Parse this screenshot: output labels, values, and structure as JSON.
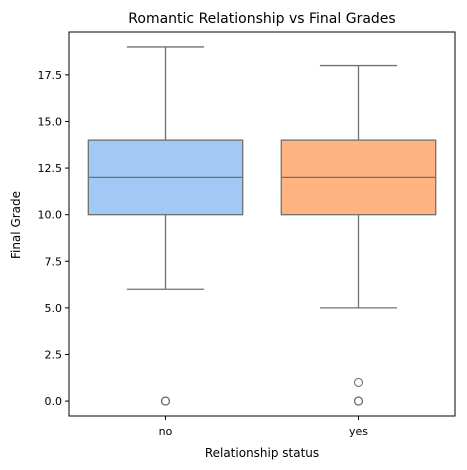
{
  "chart_data": {
    "type": "box",
    "title": "Romantic Relationship vs Final Grades",
    "xlabel": "Relationship status",
    "ylabel": "Final Grade",
    "ylim": [
      -0.8,
      19.8
    ],
    "yticks": [
      0.0,
      2.5,
      5.0,
      7.5,
      10.0,
      12.5,
      15.0,
      17.5
    ],
    "ytick_labels": [
      "0.0",
      "2.5",
      "5.0",
      "7.5",
      "10.0",
      "12.5",
      "15.0",
      "17.5"
    ],
    "categories": [
      "no",
      "yes"
    ],
    "series": [
      {
        "category": "no",
        "whisker_low": 6,
        "q1": 10,
        "median": 12,
        "q3": 14,
        "whisker_high": 19,
        "outliers": [
          0,
          0,
          0
        ],
        "color": "#a1c9f4"
      },
      {
        "category": "yes",
        "whisker_low": 5,
        "q1": 10,
        "median": 12,
        "q3": 14,
        "whisker_high": 18,
        "outliers": [
          1,
          0,
          0,
          0
        ],
        "color": "#ffb482"
      }
    ],
    "grid": false,
    "line_color": "#707070"
  }
}
